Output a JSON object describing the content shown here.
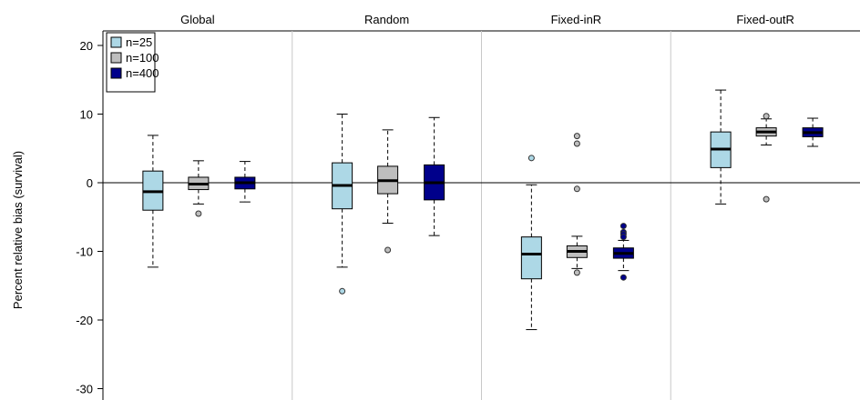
{
  "chart_data": {
    "type": "boxplot",
    "ylabel": "Percent relative bias (survival)",
    "ylim": [
      -30,
      22
    ],
    "yticks": [
      20,
      10,
      0,
      -10,
      -20,
      -30
    ],
    "grid": false,
    "reference_line": 0,
    "legend_position": "top-left",
    "panels": [
      "Global",
      "Random",
      "Fixed-inR",
      "Fixed-outR"
    ],
    "series": [
      {
        "name": "n=25",
        "color": "#add8e6",
        "boxes": [
          {
            "panel": "Global",
            "whisker_low": -12.3,
            "q1": -4.0,
            "median": -1.3,
            "q3": 1.7,
            "whisker_high": 6.9,
            "outliers": []
          },
          {
            "panel": "Random",
            "whisker_low": -12.3,
            "q1": -3.8,
            "median": -0.4,
            "q3": 2.9,
            "whisker_high": 10.0,
            "outliers": [
              -15.8
            ]
          },
          {
            "panel": "Fixed-inR",
            "whisker_low": -21.4,
            "q1": -14.0,
            "median": -10.4,
            "q3": -7.9,
            "whisker_high": -0.3,
            "outliers": [
              3.6
            ]
          },
          {
            "panel": "Fixed-outR",
            "whisker_low": -3.1,
            "q1": 2.2,
            "median": 4.9,
            "q3": 7.4,
            "whisker_high": 13.5,
            "outliers": []
          }
        ]
      },
      {
        "name": "n=100",
        "color": "#bebebe",
        "boxes": [
          {
            "panel": "Global",
            "whisker_low": -3.1,
            "q1": -1.0,
            "median": -0.2,
            "q3": 0.8,
            "whisker_high": 3.2,
            "outliers": [
              -4.5
            ]
          },
          {
            "panel": "Random",
            "whisker_low": -5.9,
            "q1": -1.6,
            "median": 0.3,
            "q3": 2.4,
            "whisker_high": 7.7,
            "outliers": [
              -9.8
            ]
          },
          {
            "panel": "Fixed-inR",
            "whisker_low": -12.5,
            "q1": -10.9,
            "median": -10.0,
            "q3": -9.2,
            "whisker_high": -7.8,
            "outliers": [
              -0.9,
              5.7,
              6.8,
              -13.1
            ]
          },
          {
            "panel": "Fixed-outR",
            "whisker_low": 5.5,
            "q1": 6.8,
            "median": 7.4,
            "q3": 8.0,
            "whisker_high": 9.3,
            "outliers": [
              9.7,
              -2.4
            ]
          }
        ]
      },
      {
        "name": "n=400",
        "color": "#00008b",
        "boxes": [
          {
            "panel": "Global",
            "whisker_low": -2.8,
            "q1": -0.9,
            "median": 0.0,
            "q3": 0.8,
            "whisker_high": 3.1,
            "outliers": []
          },
          {
            "panel": "Random",
            "whisker_low": -7.7,
            "q1": -2.5,
            "median": 0.0,
            "q3": 2.6,
            "whisker_high": 9.5,
            "outliers": []
          },
          {
            "panel": "Fixed-inR",
            "whisker_low": -12.8,
            "q1": -11.0,
            "median": -10.3,
            "q3": -9.5,
            "whisker_high": -8.4,
            "outliers": [
              -6.3,
              -7.2,
              -7.5,
              -7.9,
              -13.8
            ]
          },
          {
            "panel": "Fixed-outR",
            "whisker_low": 5.3,
            "q1": 6.7,
            "median": 7.3,
            "q3": 8.0,
            "whisker_high": 9.4,
            "outliers": []
          }
        ]
      }
    ]
  }
}
